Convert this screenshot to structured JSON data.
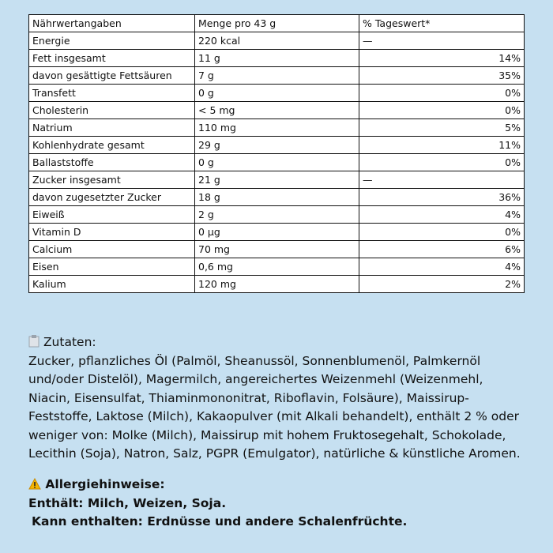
{
  "table": {
    "header": [
      "Nährwertangaben",
      "Menge pro 43 g",
      "% Tageswert*"
    ],
    "rows": [
      [
        "Energie",
        "220 kcal",
        "—"
      ],
      [
        "Fett insgesamt",
        "11 g",
        "14%"
      ],
      [
        "davon gesättigte Fettsäuren",
        "7 g",
        "35%"
      ],
      [
        "Transfett",
        "0 g",
        "0%"
      ],
      [
        "Cholesterin",
        "< 5 mg",
        "0%"
      ],
      [
        "Natrium",
        "110 mg",
        "5%"
      ],
      [
        "Kohlenhydrate gesamt",
        "29 g",
        "11%"
      ],
      [
        "Ballaststoffe",
        "0 g",
        "0%"
      ],
      [
        "Zucker insgesamt",
        "21 g",
        "—"
      ],
      [
        "davon zugesetzter Zucker",
        "18 g",
        "36%"
      ],
      [
        "Eiweiß",
        "2 g",
        "4%"
      ],
      [
        "Vitamin D",
        "0 µg",
        "0%"
      ],
      [
        "Calcium",
        "70 mg",
        "6%"
      ],
      [
        "Eisen",
        "0,6 mg",
        "4%"
      ],
      [
        "Kalium",
        "120 mg",
        "2%"
      ]
    ]
  },
  "ingredients": {
    "title": "Zutaten:",
    "lines": [
      "Zucker, pflanzliches Öl (Palmöl, Sheanussöl, Sonnenblumenöl, Palmkernöl",
      "und/oder Distelöl), Magermilch, angereichertes Weizenmehl (Weizenmehl,",
      "Niacin, Eisensulfat, Thiaminmononitrat, Riboflavin, Folsäure), Maissirup-",
      "Feststoffe, Laktose (Milch), Kakaopulver (mit Alkali behandelt), enthält 2 % oder",
      "weniger von: Molke (Milch), Maissirup mit hohem Fruktosegehalt, Schokolade,",
      "Lecithin (Soja), Natron, Salz, PGPR (Emulgator), natürliche & künstliche Aromen."
    ]
  },
  "allergens": {
    "title": "Allergiehinweise:",
    "contains": "Enthält: Milch, Weizen, Soja.",
    "may_contain": "Kann enthalten: Erdnüsse und andere Schalenfrüchte."
  }
}
